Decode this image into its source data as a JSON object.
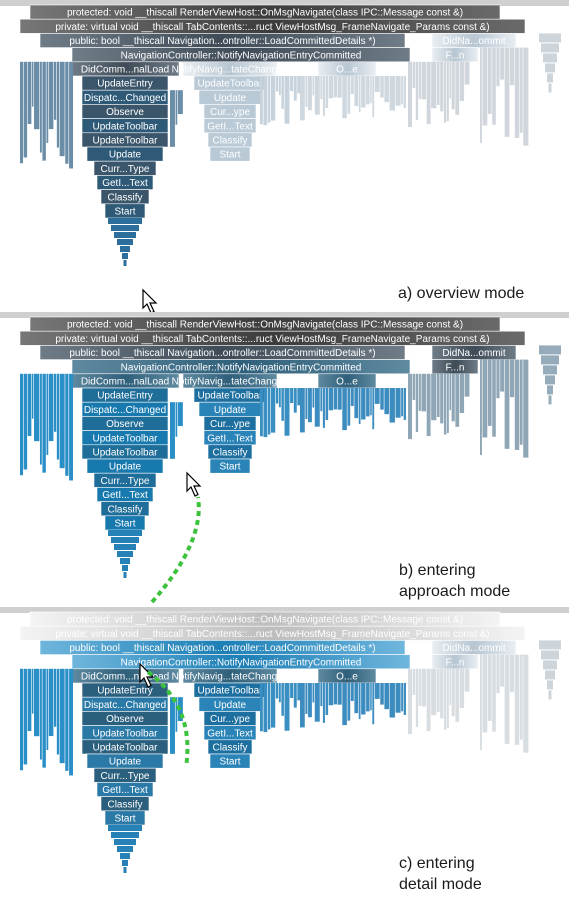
{
  "rows": [
    "protected: void __thiscall RenderViewHost::OnMsgNavigate(class IPC::Message const &)",
    "private: virtual void __thiscall TabContents::...ruct ViewHostMsg_FrameNavigate_Params const &)",
    "public: bool __thiscall Navigation...ontroller::LoadCommittedDetails *)",
    "NavigationController::NotifyNavigationEntryCommitted"
  ],
  "side_labels": {
    "did_commit": "DidNa...ommit",
    "f_n": "F...n"
  },
  "columns": {
    "main": [
      "DidComm...nalLoad",
      "UpdateEntry",
      "Dispatc...Changed",
      "Observe",
      "UpdateToolbar",
      "UpdateToolbar",
      "Update",
      "Curr...Type",
      "GetI...Text",
      "Classify",
      "Start"
    ],
    "main_c": [
      "DidComm...nalLoad",
      "UpdateEntry",
      "Dispatc...Changed",
      "Observe",
      "UpdateToolbar",
      "UpdateToolbar",
      "Update",
      "Curr...Type",
      "GetI...Text",
      "Classify",
      "Start"
    ],
    "second": [
      "NotifyNavig...tateChanged",
      "UpdateToolbar",
      "Update",
      "Cur...ype",
      "GetI...Text",
      "Classify",
      "Start"
    ],
    "second_a": [
      "NotifyNavig...tateChanged",
      "UpdateToolbar",
      "Update",
      "Cur...ype",
      "GetI...Text",
      "Classify",
      "Start"
    ],
    "third": "O...e"
  },
  "captions": {
    "a": "a) overview mode",
    "b_line1": "b) entering",
    "b_line2": "approach mode",
    "c_line1": "c) entering",
    "c_line2": "detail mode"
  },
  "colors": {
    "dark": "#4a5560",
    "blue": "#2a8bbd",
    "light": "#c8d3dc",
    "path": "#3cc23c"
  }
}
